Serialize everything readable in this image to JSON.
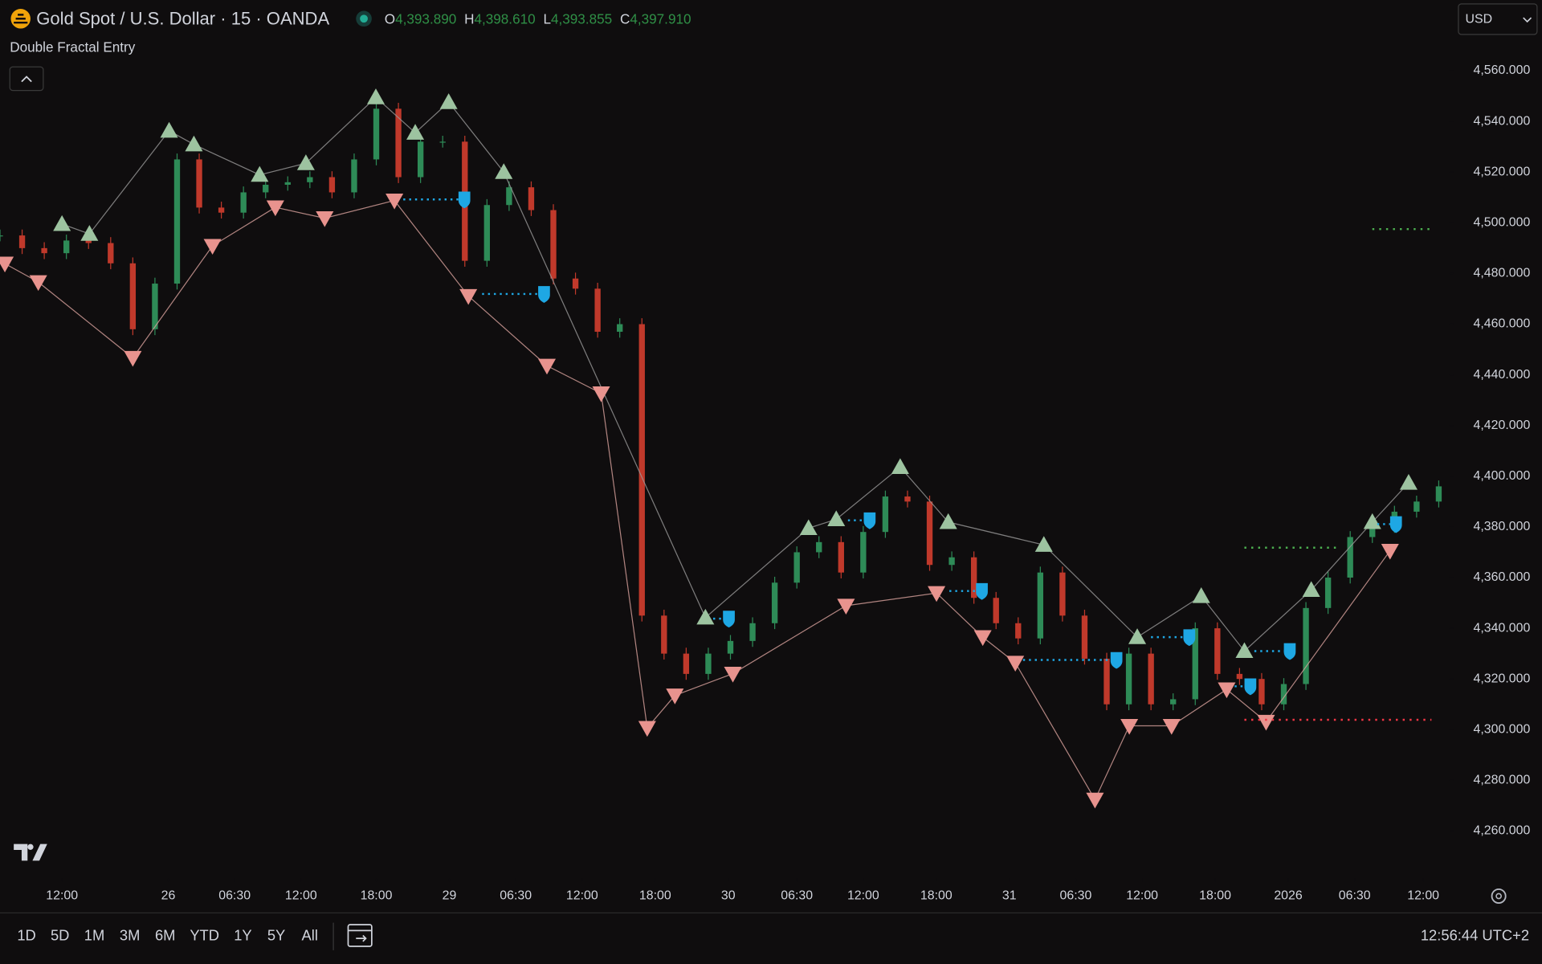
{
  "chart_data": {
    "type": "candlestick",
    "title": "Gold Spot / U.S. Dollar · 15 · OANDA",
    "ohlc": [
      {
        "label": "O",
        "value": "4,393.890"
      },
      {
        "label": "H",
        "value": "4,398.610"
      },
      {
        "label": "L",
        "value": "4,393.855"
      },
      {
        "label": "C",
        "value": "4,397.910"
      }
    ],
    "indicator": "Double Fractal Entry",
    "currency": "USD",
    "up_color": "#2e8b57",
    "down_color": "#c0392b",
    "x": [
      0,
      10,
      20,
      30,
      40,
      50,
      60,
      70,
      80,
      90,
      100,
      110,
      120,
      130,
      140,
      150,
      160,
      170,
      180,
      190,
      200,
      210,
      220,
      230,
      240,
      250,
      260,
      270,
      280,
      290,
      300,
      310,
      320,
      330,
      340,
      350,
      360,
      370,
      380,
      390,
      400,
      410,
      420,
      430,
      440,
      450,
      460,
      470,
      480,
      490,
      500,
      510,
      520,
      530,
      540,
      550,
      560,
      570,
      580,
      590,
      600,
      610,
      620,
      630,
      640,
      650
    ],
    "close": [
      4495,
      4490,
      4488,
      4493,
      4492,
      4484,
      4458,
      4476,
      4525,
      4506,
      4504,
      4512,
      4515,
      4516,
      4518,
      4512,
      4525,
      4545,
      4518,
      4532,
      4532,
      4485,
      4507,
      4514,
      4505,
      4478,
      4474,
      4457,
      4460,
      4345,
      4330,
      4322,
      4330,
      4335,
      4342,
      4358,
      4370,
      4374,
      4362,
      4378,
      4392,
      4390,
      4365,
      4368,
      4352,
      4342,
      4336,
      4362,
      4345,
      4328,
      4310,
      4330,
      4310,
      4312,
      4340,
      4322,
      4320,
      4310,
      4318,
      4348,
      4360,
      4376,
      4380,
      4386,
      4390,
      4396
    ],
    "series": [
      {
        "marker": "up",
        "color": "#9dc3a0",
        "line_color": "#9a9a9a",
        "x": [
          28,
          40.4,
          76.4,
          87.6,
          117.3,
          138.2,
          169.8,
          187.6,
          202.7,
          227.6,
          318.7,
          365.3,
          377.8,
          406.7,
          428.4,
          471.6,
          513.8,
          542.7,
          562.2,
          592.4,
          620,
          636.4
        ],
        "values": [
          4499.5,
          4495.6,
          4536.3,
          4530.9,
          4518.9,
          4523.5,
          4549.5,
          4535.5,
          4547.6,
          4520.0,
          4344.2,
          4379.5,
          4383.0,
          4403.6,
          4381.9,
          4372.9,
          4336.5,
          4352.7,
          4331.0,
          4355.1,
          4381.9,
          4397.4
        ]
      },
      {
        "marker": "down",
        "color": "#e8938e",
        "line_color": "#d9a39d",
        "x": [
          2.2,
          17.3,
          60,
          96,
          124.4,
          146.7,
          178.2,
          211.6,
          247.1,
          271.6,
          292.4,
          304.9,
          331.1,
          382.2,
          423.1,
          444,
          458.7,
          494.7,
          510.2,
          529.3,
          554.2,
          572,
          628
        ],
        "values": [
          4483.9,
          4476.6,
          4446.7,
          4490.9,
          4506.1,
          4501.8,
          4508.8,
          4471.1,
          4443.6,
          4432.7,
          4300.7,
          4313.5,
          4322.1,
          4348.9,
          4353.9,
          4336.5,
          4326.4,
          4272.4,
          4301.5,
          4301.5,
          4315.9,
          4303.1,
          4370.6
        ]
      }
    ],
    "entries": {
      "color": "#1ea7e4",
      "start_x": [
        182.2,
        217.8,
        322.2,
        383.1,
        428.9,
        462.2,
        520,
        557.8,
        566.7,
        622.2
      ],
      "x": [
        209.8,
        245.8,
        329.3,
        392.9,
        443.6,
        504.4,
        537.3,
        564.9,
        582.7,
        630.7
      ],
      "values": [
        4509.2,
        4471.9,
        4343.8,
        4382.6,
        4354.7,
        4327.5,
        4336.5,
        4317.1,
        4331.0,
        4381.1
      ]
    },
    "levels": [
      {
        "color": "#4caf50",
        "x": [
          620,
          646.7
        ],
        "value": 4497.5
      },
      {
        "color": "#4caf50",
        "x": [
          562.2,
          604.4
        ],
        "value": 4371.8
      },
      {
        "color": "#f23645",
        "x": [
          562.2,
          646.7
        ],
        "value": 4303.9
      }
    ],
    "xlim": [
      0,
      650
    ],
    "ylim": [
      4241.3,
      4587.9
    ],
    "xticks": [
      {
        "value": 28,
        "label": "12:00"
      },
      {
        "value": 76,
        "label": "26"
      },
      {
        "value": 106,
        "label": "06:30"
      },
      {
        "value": 136,
        "label": "12:00"
      },
      {
        "value": 170,
        "label": "18:00"
      },
      {
        "value": 203,
        "label": "29"
      },
      {
        "value": 233,
        "label": "06:30"
      },
      {
        "value": 263,
        "label": "12:00"
      },
      {
        "value": 296,
        "label": "18:00"
      },
      {
        "value": 329,
        "label": "30"
      },
      {
        "value": 360,
        "label": "06:30"
      },
      {
        "value": 390,
        "label": "12:00"
      },
      {
        "value": 423,
        "label": "18:00"
      },
      {
        "value": 456,
        "label": "31"
      },
      {
        "value": 486,
        "label": "06:30"
      },
      {
        "value": 516,
        "label": "12:00"
      },
      {
        "value": 549,
        "label": "18:00"
      },
      {
        "value": 582,
        "label": "2026"
      },
      {
        "value": 612,
        "label": "06:30"
      },
      {
        "value": 643,
        "label": "12:00"
      }
    ],
    "yticks": [
      {
        "value": 4560,
        "label": "4,560.000"
      },
      {
        "value": 4540,
        "label": "4,540.000"
      },
      {
        "value": 4520,
        "label": "4,520.000"
      },
      {
        "value": 4500,
        "label": "4,500.000"
      },
      {
        "value": 4480,
        "label": "4,480.000"
      },
      {
        "value": 4460,
        "label": "4,460.000"
      },
      {
        "value": 4440,
        "label": "4,440.000"
      },
      {
        "value": 4420,
        "label": "4,420.000"
      },
      {
        "value": 4400,
        "label": "4,400.000"
      },
      {
        "value": 4380,
        "label": "4,380.000"
      },
      {
        "value": 4360,
        "label": "4,360.000"
      },
      {
        "value": 4340,
        "label": "4,340.000"
      },
      {
        "value": 4320,
        "label": "4,320.000"
      },
      {
        "value": 4300,
        "label": "4,300.000"
      },
      {
        "value": 4280,
        "label": "4,280.000"
      },
      {
        "value": 4260,
        "label": "4,260.000"
      }
    ],
    "ranges": [
      "1D",
      "5D",
      "1M",
      "3M",
      "6M",
      "YTD",
      "1Y",
      "5Y",
      "All"
    ],
    "clock": "12:56:44 UTC+2"
  }
}
